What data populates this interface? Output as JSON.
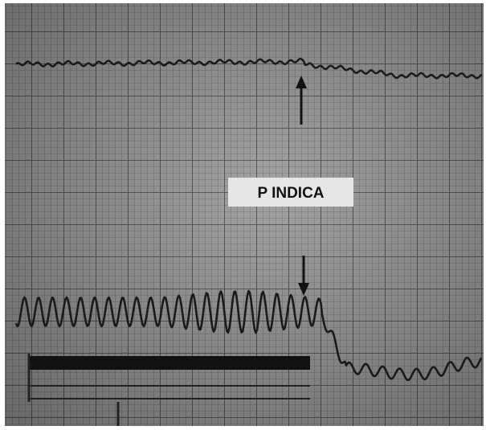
{
  "label": "P INDICA"
}
